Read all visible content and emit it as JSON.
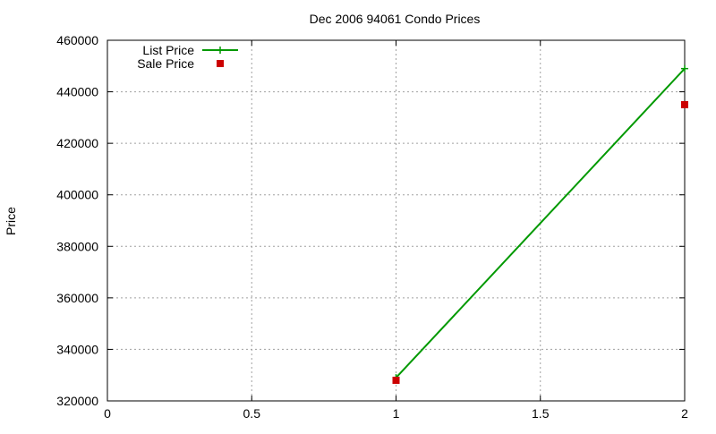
{
  "chart_data": {
    "type": "line",
    "title": "Dec 2006 94061 Condo Prices",
    "xlabel": "",
    "ylabel": "Price",
    "xlim": [
      0,
      2
    ],
    "ylim": [
      320000,
      460000
    ],
    "xticks": [
      0,
      0.5,
      1,
      1.5,
      2
    ],
    "xtick_labels": [
      "0",
      "0.5",
      "1",
      "1.5",
      "2"
    ],
    "yticks": [
      320000,
      340000,
      360000,
      380000,
      400000,
      420000,
      440000,
      460000
    ],
    "ytick_labels": [
      "320000",
      "340000",
      "360000",
      "380000",
      "400000",
      "420000",
      "440000",
      "460000"
    ],
    "grid": true,
    "legend_position": "top-left",
    "series": [
      {
        "name": "List Price",
        "style": "linespoints",
        "marker": "plus",
        "color": "#009900",
        "x": [
          1,
          2
        ],
        "y": [
          329000,
          449000
        ]
      },
      {
        "name": "Sale Price",
        "style": "points",
        "marker": "square",
        "color": "#cc0000",
        "x": [
          1,
          2
        ],
        "y": [
          328000,
          435000
        ]
      }
    ]
  }
}
